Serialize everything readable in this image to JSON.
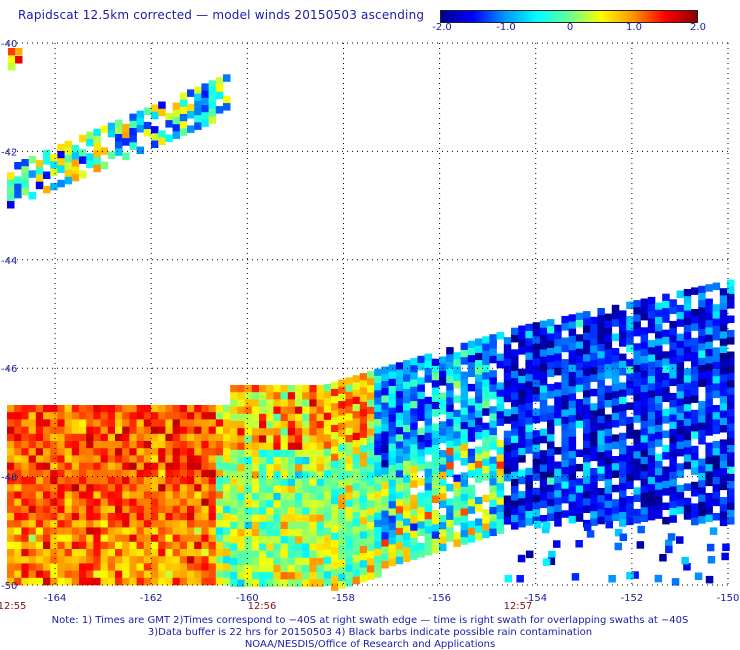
{
  "title": "Rapidscat 12.5km corrected — model winds 20150503 ascending",
  "colorbar": {
    "ticks": [
      "-2.0",
      "-1.0",
      "0",
      "1.0",
      "2.0"
    ],
    "range": [
      -2.0,
      2.0
    ],
    "colors": [
      "#00008c",
      "#0000ff",
      "#0096ff",
      "#00ffff",
      "#64ff96",
      "#ffff00",
      "#ff9600",
      "#ff0000",
      "#8c0000"
    ]
  },
  "map": {
    "lon_range": [
      -165,
      -150
    ],
    "lat_range": [
      -40,
      -50
    ],
    "lat_labels": [
      "-40",
      "-42",
      "-44",
      "-46",
      "-48",
      "-50"
    ],
    "lon_labels": [
      "-164",
      "-162",
      "-160",
      "-158",
      "-156",
      "-154",
      "-152",
      "-150"
    ],
    "time_labels": [
      "12:55",
      "12:56",
      "12:57"
    ]
  },
  "notes": [
    "Note: 1) Times are GMT 2)Times correspond to −40S at right swath edge — time is right swath for overlapping swaths at −40S",
    "3)Data buffer is 22 hrs for 20150503 4) Black barbs indicate possible rain contamination",
    "NOAA/NESDIS/Office of Research and Applications"
  ]
}
